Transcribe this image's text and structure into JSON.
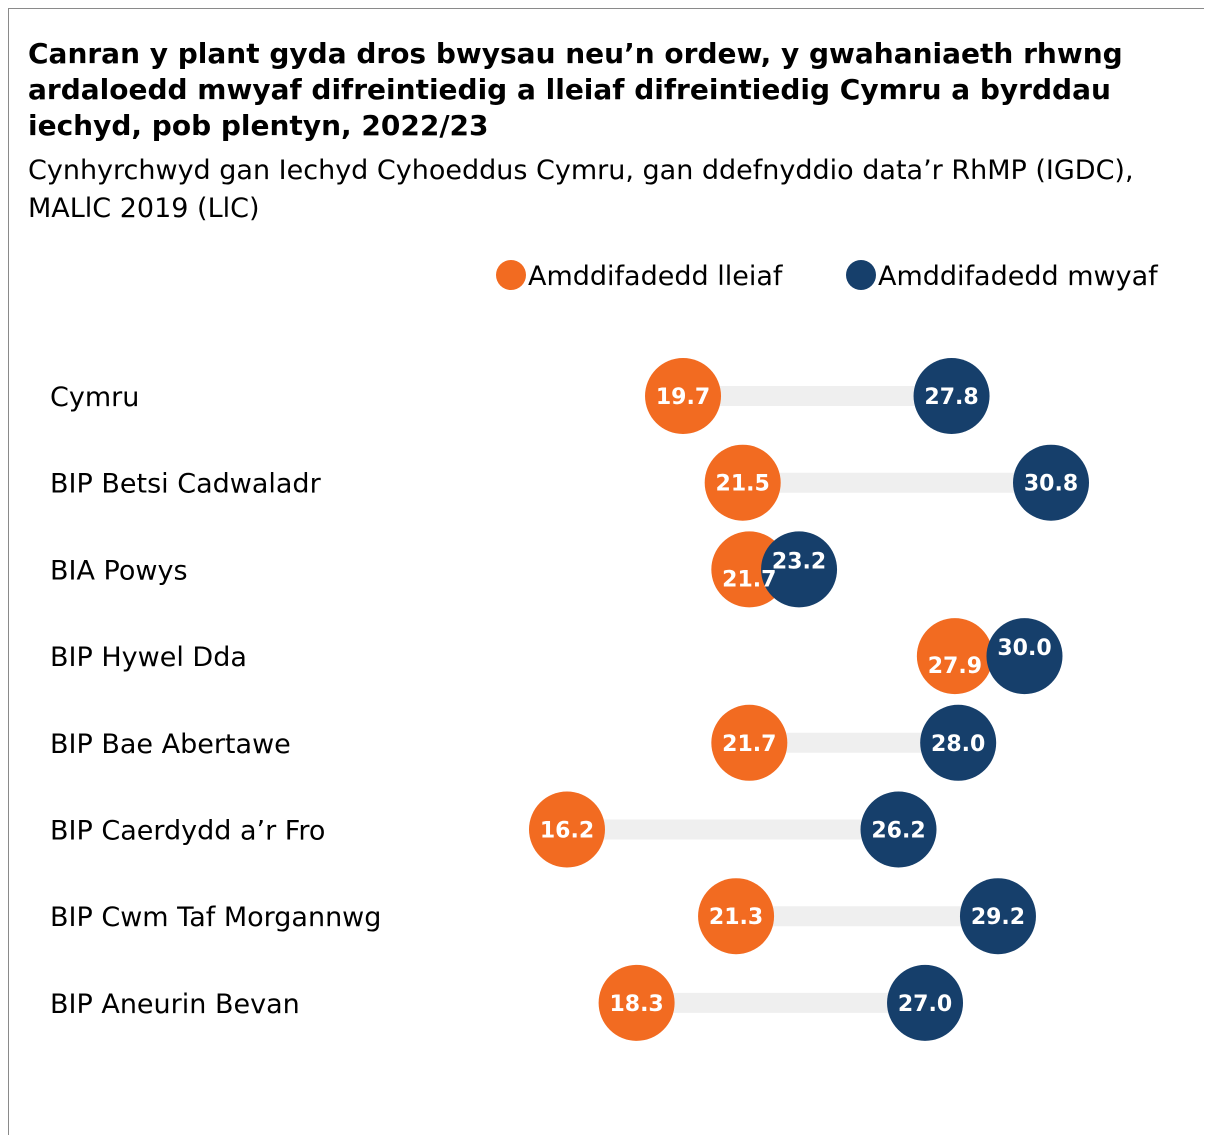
{
  "colors": {
    "least": "#f26b21",
    "most": "#163f6b",
    "connector": "#efefef"
  },
  "chart_data": {
    "type": "dumbbell",
    "title": "Canran y plant gyda dros bwysau neu’n ordew, y gwahaniaeth rhwng ardaloedd mwyaf difreintiedig a lleiaf difreintiedig Cymru a byrddau iechyd, pob plentyn, 2022/23",
    "subtitle": "Cynhyrchwyd gan Iechyd Cyhoeddus Cymru, gan ddefnyddio data’r RhMP (IGDC), MALlC 2019 (LlC)",
    "legend_position": "top-right",
    "xlim": [
      13,
      36
    ],
    "categories": [
      "Cymru",
      "BIP Betsi Cadwaladr",
      "BIA Powys",
      "BIP Hywel Dda",
      "BIP Bae Abertawe",
      "BIP Caerdydd a’r Fro",
      "BIP Cwm Taf Morgannwg",
      "BIP Aneurin Bevan"
    ],
    "series": [
      {
        "name": "Amddifadedd lleiaf",
        "values": [
          19.7,
          21.5,
          21.7,
          27.9,
          21.7,
          16.2,
          21.3,
          18.3
        ],
        "labels": [
          "19.7",
          "21.5",
          "21.7",
          "27.9",
          "21.7",
          "16.2",
          "21.3",
          "18.3"
        ]
      },
      {
        "name": "Amddifadedd mwyaf",
        "values": [
          27.8,
          30.8,
          23.2,
          30.0,
          28.0,
          26.2,
          29.2,
          27.0
        ],
        "labels": [
          "27.8",
          "30.8",
          "23.2",
          "30.0",
          "28.0",
          "26.2",
          "29.2",
          "27.0"
        ]
      }
    ]
  }
}
